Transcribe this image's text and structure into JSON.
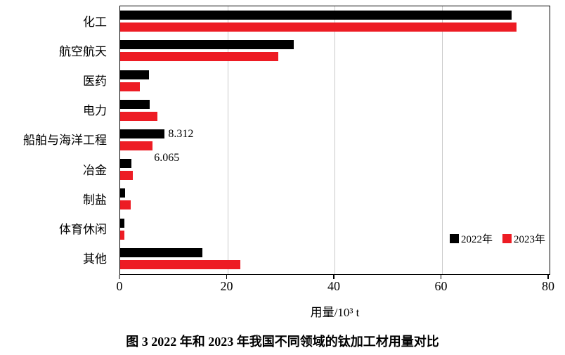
{
  "chart_data": {
    "type": "bar",
    "orientation": "horizontal",
    "categories": [
      "化工",
      "航空航天",
      "医药",
      "电力",
      "船舶与海洋工程",
      "冶金",
      "制盐",
      "体育休闲",
      "其他"
    ],
    "series": [
      {
        "name": "2022年",
        "color": "#000000",
        "values": [
          73.0,
          32.4,
          5.4,
          5.5,
          8.312,
          2.1,
          0.9,
          0.8,
          15.4
        ]
      },
      {
        "name": "2023年",
        "color": "#ed1c24",
        "values": [
          74.0,
          29.5,
          3.7,
          6.9,
          6.065,
          2.4,
          2.0,
          0.8,
          22.4
        ]
      }
    ],
    "annotations": [
      {
        "category": "船舶与海洋工程",
        "series": "2022年",
        "text": "8.312"
      },
      {
        "category": "船舶与海洋工程",
        "series": "2023年",
        "text": "6.065"
      }
    ],
    "xlabel": "用量/10³ t",
    "x_ticks": [
      0,
      20,
      40,
      60,
      80
    ],
    "xlim": [
      0,
      80
    ],
    "grid": true,
    "grid_color": "#c9c9c9",
    "legend_position": "inside-bottom-right"
  },
  "caption": "图 3  2022 年和 2023 年我国不同领域的钛加工材用量对比"
}
